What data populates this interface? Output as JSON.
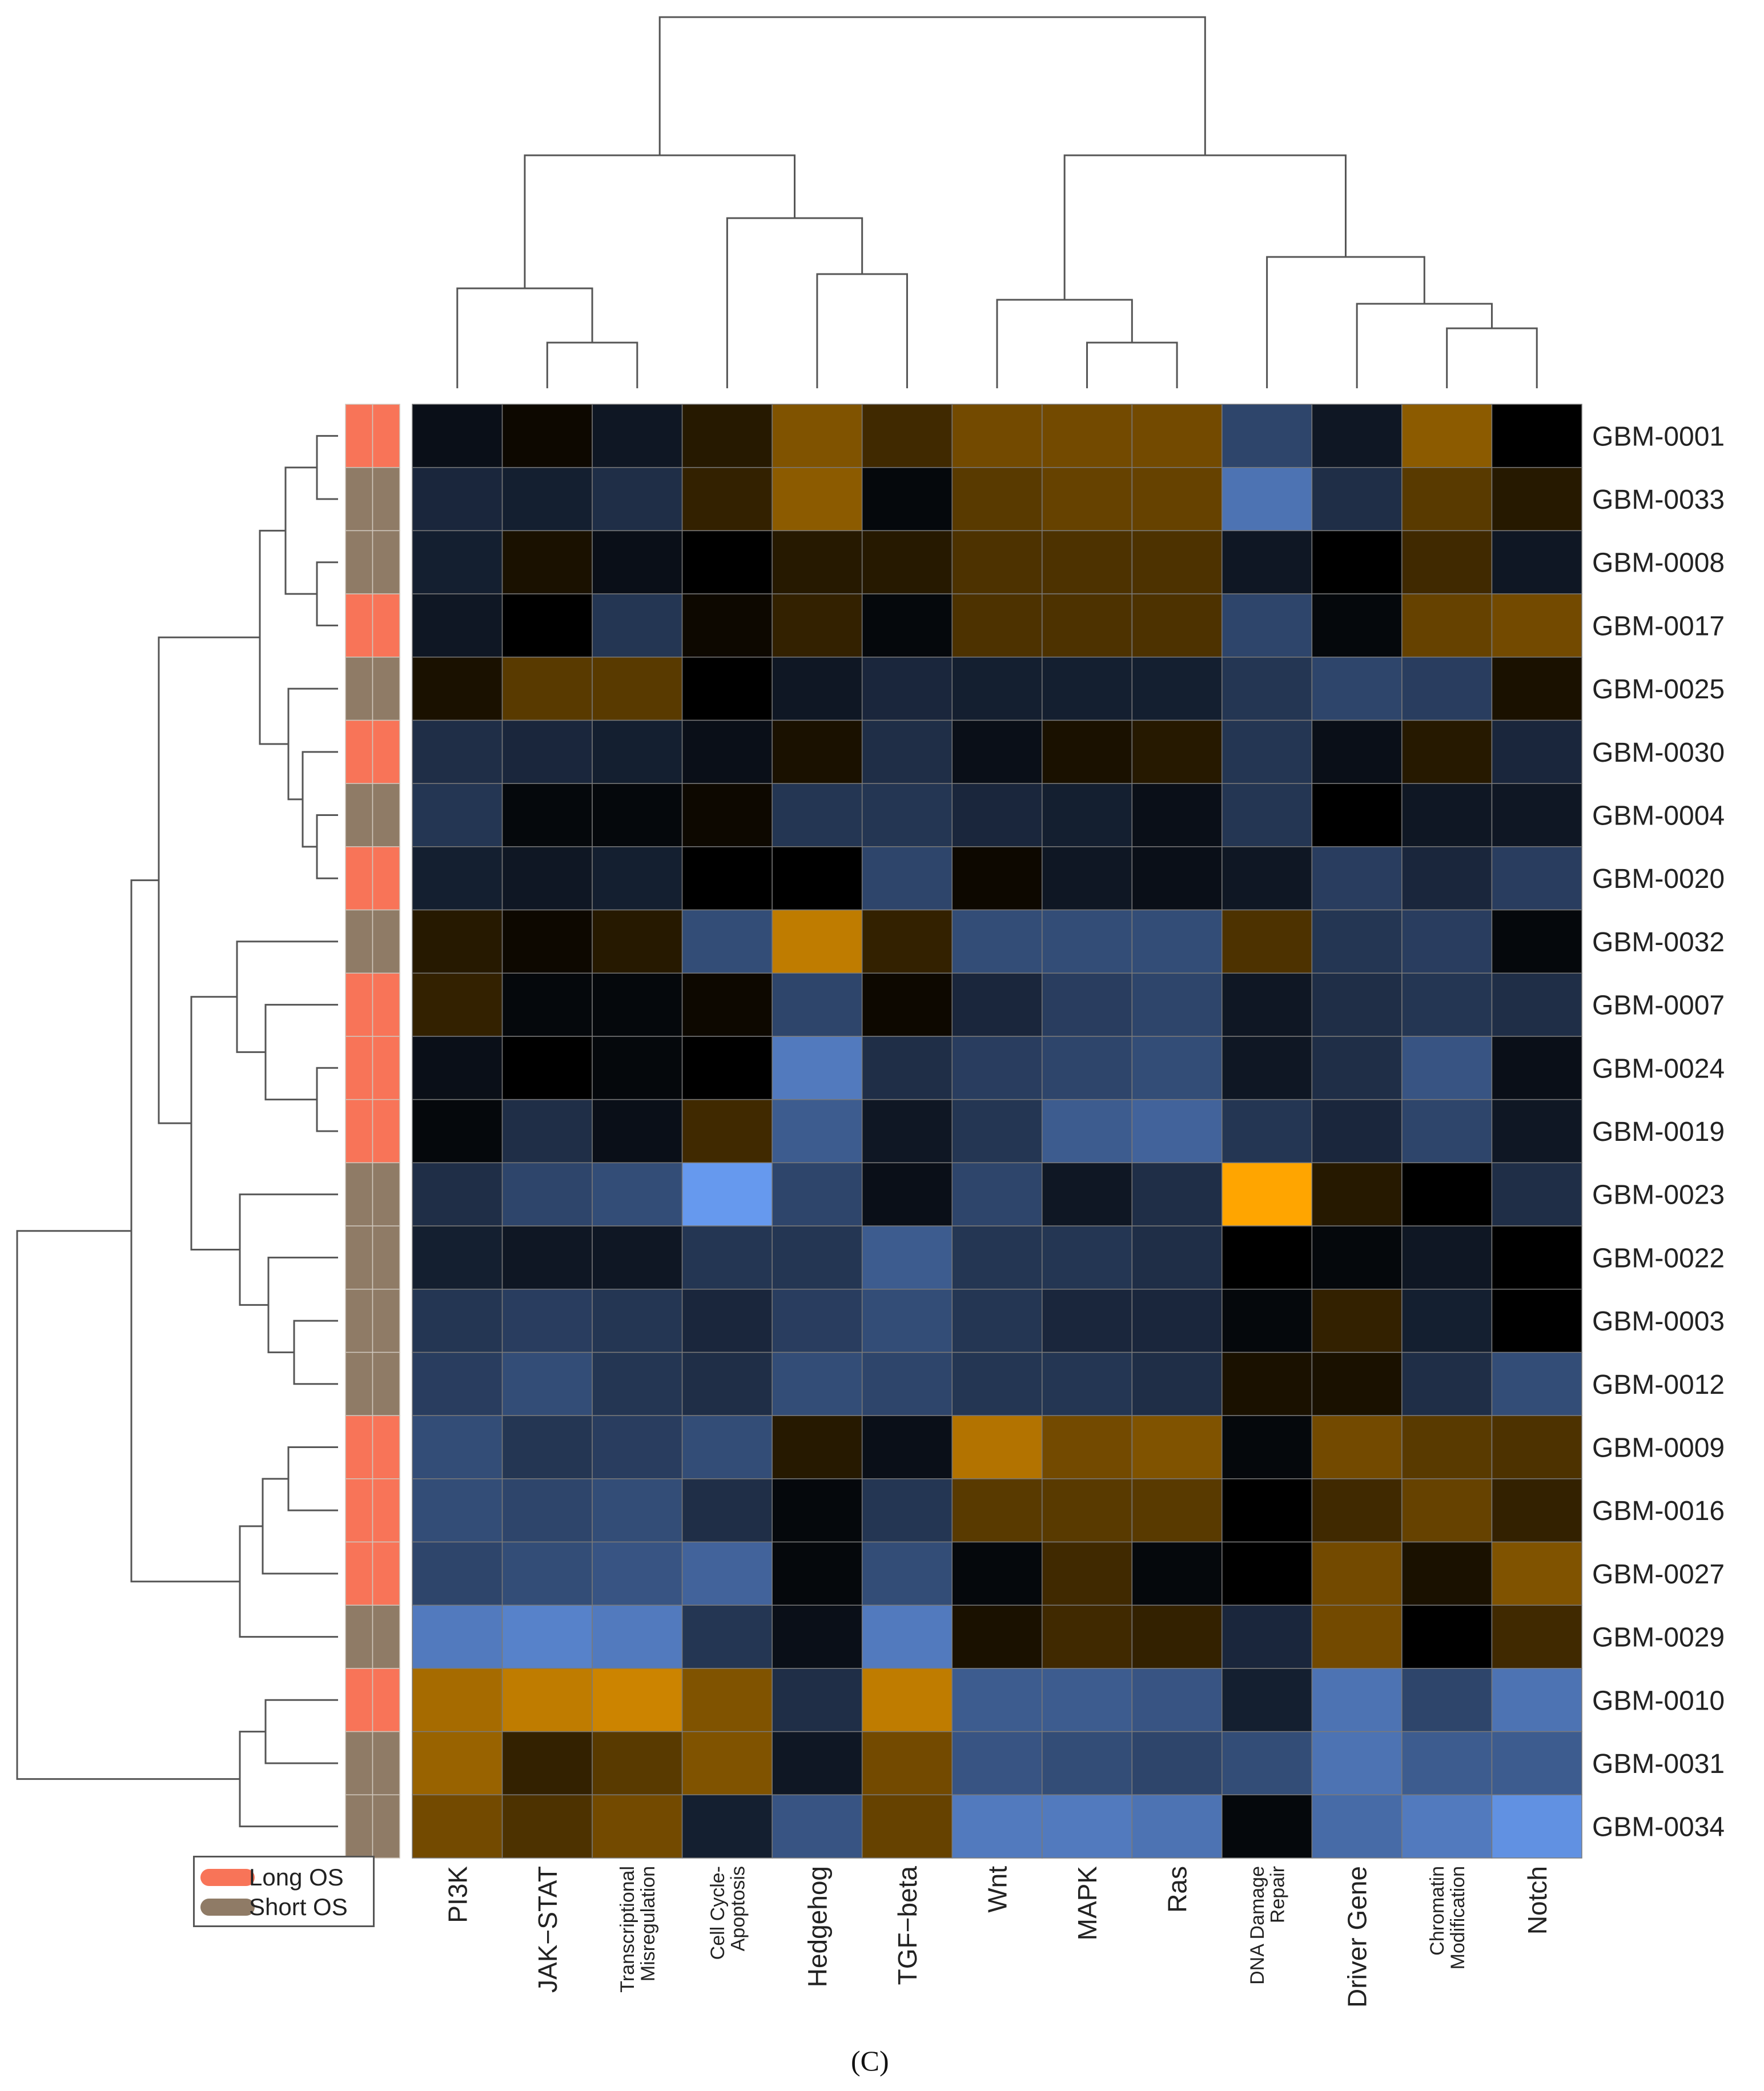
{
  "chart_data": {
    "type": "heatmap",
    "panel_label": "(C)",
    "columns": [
      "PI3K",
      "JAK−STAT",
      "Transcriptional Misregulation",
      "Cell Cycle-Apoptosis",
      "Hedgehog",
      "TGF−beta",
      "Wnt",
      "MAPK",
      "Ras",
      "DNA Damage Repair",
      "Driver Gene",
      "Chromatin Modification",
      "Notch"
    ],
    "column_label_lines": [
      [
        "PI3K"
      ],
      [
        "JAK−STAT"
      ],
      [
        "Transcriptional",
        "Misregulation"
      ],
      [
        "Cell Cycle-",
        "Apoptosis"
      ],
      [
        "Hedgehog"
      ],
      [
        "TGF−beta"
      ],
      [
        "Wnt"
      ],
      [
        "MAPK"
      ],
      [
        "Ras"
      ],
      [
        "DNA Damage",
        "Repair"
      ],
      [
        "Driver Gene"
      ],
      [
        "Chromatin",
        "Modification"
      ],
      [
        "Notch"
      ]
    ],
    "rows": [
      "GBM-0001",
      "GBM-0033",
      "GBM-0008",
      "GBM-0017",
      "GBM-0025",
      "GBM-0030",
      "GBM-0004",
      "GBM-0020",
      "GBM-0032",
      "GBM-0007",
      "GBM-0024",
      "GBM-0019",
      "GBM-0023",
      "GBM-0022",
      "GBM-0003",
      "GBM-0012",
      "GBM-0009",
      "GBM-0016",
      "GBM-0027",
      "GBM-0029",
      "GBM-0010",
      "GBM-0031",
      "GBM-0034"
    ],
    "row_groups": [
      "Long OS",
      "Short OS",
      "Short OS",
      "Long OS",
      "Short OS",
      "Long OS",
      "Short OS",
      "Long OS",
      "Short OS",
      "Long OS",
      "Long OS",
      "Long OS",
      "Short OS",
      "Short OS",
      "Short OS",
      "Short OS",
      "Long OS",
      "Long OS",
      "Long OS",
      "Short OS",
      "Long OS",
      "Short OS",
      "Short OS"
    ],
    "values": [
      [
        -0.1,
        0.05,
        -0.15,
        0.15,
        0.5,
        0.25,
        0.45,
        0.45,
        0.45,
        -0.45,
        -0.15,
        0.55,
        0.0
      ],
      [
        -0.25,
        -0.2,
        -0.3,
        0.2,
        0.55,
        -0.05,
        0.35,
        0.4,
        0.4,
        -0.75,
        -0.3,
        0.35,
        0.15
      ],
      [
        -0.2,
        0.1,
        -0.1,
        0.0,
        0.15,
        0.15,
        0.3,
        0.3,
        0.3,
        -0.15,
        0.0,
        0.25,
        -0.15
      ],
      [
        -0.15,
        0.0,
        -0.35,
        0.05,
        0.2,
        -0.05,
        0.3,
        0.3,
        0.3,
        -0.45,
        -0.05,
        0.4,
        0.45
      ],
      [
        0.1,
        0.35,
        0.35,
        0.0,
        -0.15,
        -0.25,
        -0.2,
        -0.2,
        -0.2,
        -0.35,
        -0.45,
        -0.4,
        0.1
      ],
      [
        -0.3,
        -0.25,
        -0.2,
        -0.1,
        0.1,
        -0.3,
        -0.1,
        0.1,
        0.15,
        -0.35,
        -0.1,
        0.15,
        -0.25
      ],
      [
        -0.35,
        -0.05,
        -0.05,
        0.05,
        -0.35,
        -0.35,
        -0.25,
        -0.2,
        -0.1,
        -0.35,
        0.0,
        -0.15,
        -0.15
      ],
      [
        -0.2,
        -0.15,
        -0.2,
        0.0,
        0.0,
        -0.45,
        0.05,
        -0.15,
        -0.1,
        -0.15,
        -0.4,
        -0.25,
        -0.4
      ],
      [
        0.15,
        0.05,
        0.15,
        -0.5,
        0.75,
        0.2,
        -0.5,
        -0.5,
        -0.5,
        0.3,
        -0.35,
        -0.4,
        -0.05
      ],
      [
        0.2,
        -0.05,
        -0.05,
        0.05,
        -0.45,
        0.05,
        -0.25,
        -0.4,
        -0.45,
        -0.15,
        -0.3,
        -0.35,
        -0.3
      ],
      [
        -0.1,
        0.0,
        -0.05,
        0.0,
        -0.8,
        -0.3,
        -0.4,
        -0.45,
        -0.5,
        -0.15,
        -0.3,
        -0.55,
        -0.1
      ],
      [
        -0.05,
        -0.3,
        -0.1,
        0.25,
        -0.6,
        -0.15,
        -0.35,
        -0.6,
        -0.65,
        -0.35,
        -0.25,
        -0.45,
        -0.15
      ],
      [
        -0.3,
        -0.45,
        -0.5,
        -1.0,
        -0.45,
        -0.1,
        -0.45,
        -0.15,
        -0.3,
        1.0,
        0.15,
        0.0,
        -0.3
      ],
      [
        -0.2,
        -0.15,
        -0.15,
        -0.35,
        -0.35,
        -0.6,
        -0.35,
        -0.35,
        -0.3,
        0.0,
        -0.05,
        -0.15,
        0.0
      ],
      [
        -0.35,
        -0.4,
        -0.35,
        -0.25,
        -0.4,
        -0.5,
        -0.35,
        -0.25,
        -0.25,
        -0.05,
        0.2,
        -0.2,
        0.0
      ],
      [
        -0.4,
        -0.5,
        -0.35,
        -0.3,
        -0.5,
        -0.45,
        -0.35,
        -0.35,
        -0.3,
        0.1,
        0.1,
        -0.3,
        -0.5
      ],
      [
        -0.5,
        -0.35,
        -0.4,
        -0.5,
        0.15,
        -0.1,
        0.7,
        0.45,
        0.5,
        -0.05,
        0.45,
        0.35,
        0.3
      ],
      [
        -0.5,
        -0.45,
        -0.5,
        -0.3,
        -0.05,
        -0.35,
        0.35,
        0.35,
        0.35,
        0.0,
        0.25,
        0.4,
        0.2
      ],
      [
        -0.45,
        -0.5,
        -0.55,
        -0.65,
        -0.05,
        -0.5,
        -0.05,
        0.25,
        -0.05,
        0.0,
        0.45,
        0.1,
        0.5
      ],
      [
        -0.8,
        -0.85,
        -0.8,
        -0.35,
        -0.1,
        -0.8,
        0.1,
        0.25,
        0.2,
        -0.25,
        0.45,
        0.0,
        0.25
      ],
      [
        0.65,
        0.75,
        0.8,
        0.5,
        -0.3,
        0.75,
        -0.6,
        -0.6,
        -0.55,
        -0.2,
        -0.75,
        -0.45,
        -0.75
      ],
      [
        0.6,
        0.2,
        0.35,
        0.5,
        -0.15,
        0.45,
        -0.55,
        -0.5,
        -0.45,
        -0.5,
        -0.75,
        -0.6,
        -0.6
      ],
      [
        0.45,
        0.3,
        0.45,
        -0.2,
        -0.55,
        0.4,
        -0.8,
        -0.8,
        -0.75,
        -0.05,
        -0.7,
        -0.8,
        -0.95
      ]
    ],
    "color_scale": {
      "low": "#6699ee",
      "mid": "#000000",
      "high": "#ffa500"
    },
    "group_colors": {
      "Long OS": "#f87458",
      "Short OS": "#8f7b66"
    },
    "legend": [
      {
        "label": "Long OS",
        "color": "#f87458"
      },
      {
        "label": "Short OS",
        "color": "#8f7b66"
      }
    ],
    "legend_position": "bottom-left",
    "column_dendrogram": true,
    "row_dendrogram": true
  }
}
